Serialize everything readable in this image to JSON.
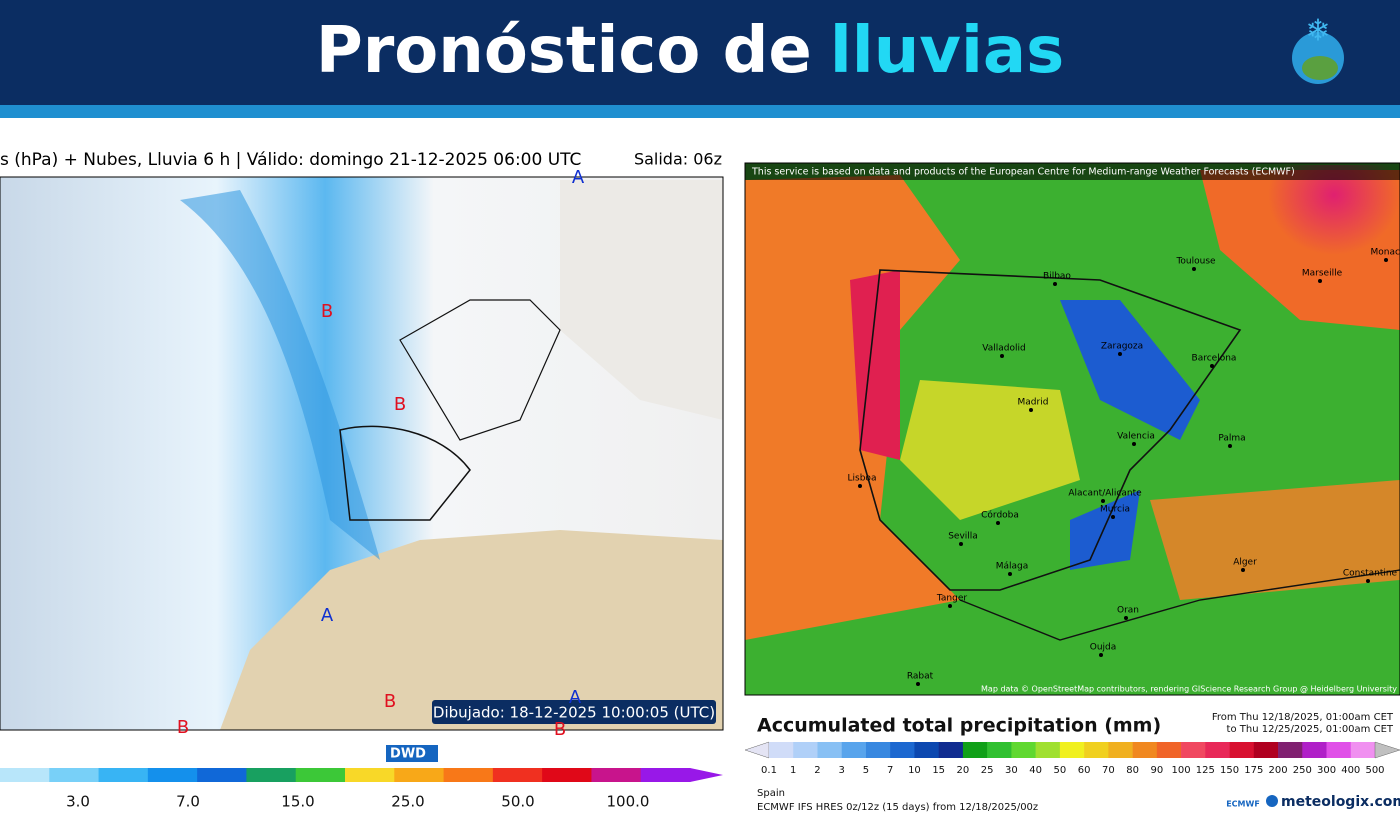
{
  "header": {
    "title_main": "Pronóstico de",
    "title_accent": "lluvias"
  },
  "left_map": {
    "title": "s (hPa) + Nubes, Lluvia 6 h | Válido: domingo 21-12-2025 06:00 UTC",
    "run": "Salida: 06z",
    "drawn": "Dibujado: 18-12-2025 10:00:05 (UTC)",
    "logo": "DWD",
    "pressure_centers": [
      "A",
      "B",
      "B",
      "A",
      "B",
      "B",
      "B",
      "A"
    ],
    "legend": {
      "labels": [
        "3.0",
        "7.0",
        "15.0",
        "25.0",
        "50.0",
        "100.0"
      ],
      "colors": [
        "#b8e6fa",
        "#78d0f8",
        "#38b4f4",
        "#1490ec",
        "#1068d8",
        "#18a060",
        "#3cc838",
        "#f8d828",
        "#f8a818",
        "#f87818",
        "#f03020",
        "#e00818",
        "#c8148c",
        "#9818e8"
      ]
    }
  },
  "right_map": {
    "notice": "This service is based on data and products of the European Centre for Medium-range Weather Forecasts (ECMWF)",
    "attribution": "Map data © OpenStreetMap contributors, rendering GIScience Research Group @ Heidelberg University",
    "cities": [
      "Bilbao",
      "Toulouse",
      "Marseille",
      "Monaco",
      "Valladolid",
      "Zaragoza",
      "Barcelona",
      "Madrid",
      "Valencia",
      "Palma",
      "Lisboa",
      "Córdoba",
      "Sevilla",
      "Murcia",
      "Alacant/Alicante",
      "Málaga",
      "Alger",
      "Constantine",
      "Tanger",
      "Oran",
      "Oujda",
      "Rabat"
    ],
    "legend": {
      "title": "Accumulated total precipitation (mm)",
      "from": "From Thu 12/18/2025, 01:00am CET",
      "to": "to Thu 12/25/2025, 01:00am CET",
      "labels": [
        "0.1",
        "1",
        "2",
        "3",
        "5",
        "7",
        "10",
        "15",
        "20",
        "25",
        "30",
        "40",
        "50",
        "60",
        "70",
        "80",
        "90",
        "100",
        "125",
        "150",
        "175",
        "200",
        "250",
        "300",
        "400",
        "500"
      ],
      "colors": [
        "#e4e4f4",
        "#d0dcf8",
        "#b0d0f8",
        "#88c0f4",
        "#58a4ec",
        "#3888e0",
        "#1c68d0",
        "#0c48b0",
        "#102c90",
        "#10a018",
        "#30c030",
        "#60d830",
        "#a0e030",
        "#f0f020",
        "#f0d020",
        "#f0b020",
        "#f08820",
        "#f06428",
        "#f04860",
        "#e82858",
        "#d81030",
        "#b00020",
        "#802070",
        "#b020c8",
        "#e050e8",
        "#f090f0",
        "#f8c8f8",
        "#c0c0c0"
      ]
    },
    "footer": {
      "region": "Spain",
      "model": "ECMWF IFS HRES 0z/12z (15 days) from 12/18/2025/00z",
      "org": "ECMWF",
      "brand": "meteologix.com"
    }
  }
}
